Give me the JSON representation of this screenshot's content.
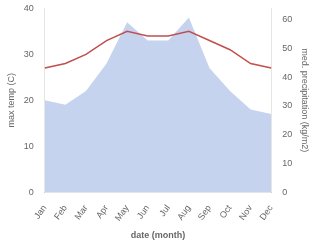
{
  "chart_data": {
    "type": "line",
    "xlabel": "date (month)",
    "ylabel": "max temp (C)",
    "y2label": "med. precipitation (kg/m2)",
    "categories": [
      "Jan",
      "Feb",
      "Mar",
      "Apr",
      "May",
      "Jun",
      "Jul",
      "Aug",
      "Sep",
      "Oct",
      "Nov",
      "Dec"
    ],
    "series": [
      {
        "type": "area",
        "color": "#c5d3ee",
        "values": [
          20,
          19,
          22,
          28,
          37,
          33,
          33,
          38,
          27,
          22,
          18,
          17
        ]
      },
      {
        "type": "line",
        "color": "#c0504d",
        "values": [
          27,
          28,
          30,
          33,
          35,
          34,
          34,
          35,
          33,
          31,
          28,
          27
        ]
      }
    ],
    "ylim": [
      0,
      40
    ],
    "yticks": [
      0,
      10,
      20,
      30,
      40
    ],
    "y2lim": [
      0,
      64
    ],
    "y2ticks": [
      0,
      10,
      20,
      30,
      40,
      50,
      60
    ],
    "grid": false
  }
}
